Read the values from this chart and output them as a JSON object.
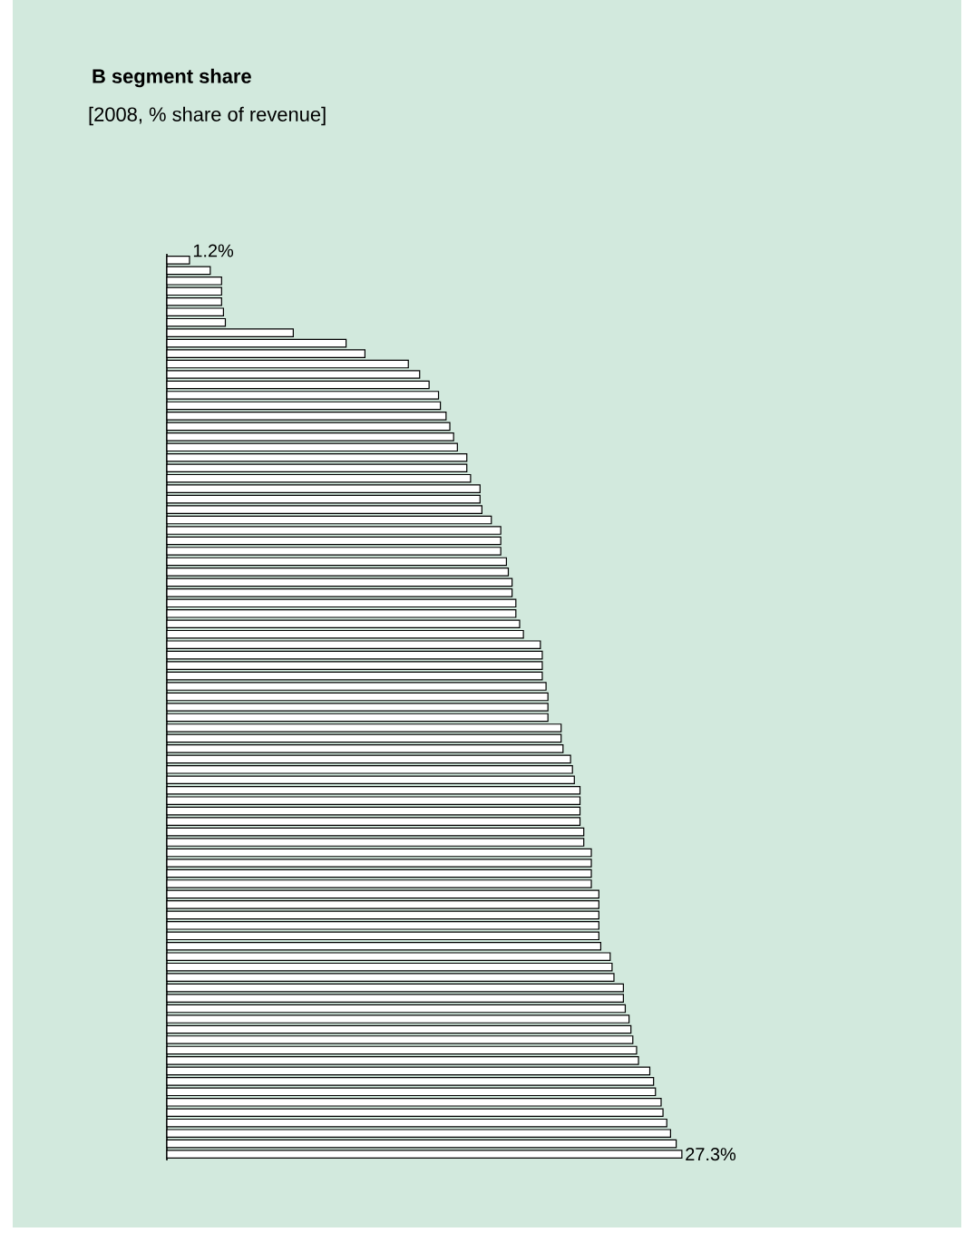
{
  "chart_data": {
    "type": "bar",
    "orientation": "horizontal",
    "title": "B segment share",
    "subtitle": "[2008, % share of revenue]",
    "categories": [
      null,
      null,
      null,
      null,
      null,
      null,
      null,
      null,
      null,
      null,
      null,
      null,
      null,
      null,
      null,
      null,
      null,
      null,
      null,
      null,
      null,
      null,
      null,
      null,
      null,
      null,
      null,
      null,
      null,
      null,
      null,
      null,
      null,
      null,
      null,
      null,
      null,
      null,
      null,
      null,
      null,
      null,
      null,
      null,
      null,
      null,
      null,
      null,
      null,
      null,
      null,
      null,
      null,
      null,
      null,
      null,
      null,
      null,
      null,
      null,
      null,
      null,
      null,
      null,
      null,
      null,
      null,
      null,
      null,
      null,
      null,
      null,
      null,
      null,
      null,
      null,
      null,
      null,
      null,
      null,
      null,
      null,
      null,
      null,
      null,
      null,
      null
    ],
    "values": [
      1.2,
      2.3,
      2.9,
      2.9,
      2.9,
      3.0,
      3.1,
      6.7,
      9.5,
      10.5,
      12.8,
      13.4,
      13.9,
      14.4,
      14.5,
      14.8,
      15.0,
      15.2,
      15.4,
      15.9,
      15.9,
      16.1,
      16.6,
      16.6,
      16.7,
      17.2,
      17.7,
      17.7,
      17.7,
      18.0,
      18.1,
      18.3,
      18.3,
      18.5,
      18.5,
      18.7,
      18.9,
      19.8,
      19.9,
      19.9,
      19.9,
      20.1,
      20.2,
      20.2,
      20.2,
      20.9,
      20.9,
      21.0,
      21.4,
      21.5,
      21.6,
      21.9,
      21.9,
      21.9,
      21.9,
      22.1,
      22.1,
      22.5,
      22.5,
      22.5,
      22.5,
      22.9,
      22.9,
      22.9,
      22.9,
      22.9,
      23.0,
      23.5,
      23.6,
      23.7,
      24.2,
      24.2,
      24.3,
      24.5,
      24.6,
      24.7,
      24.9,
      25.0,
      25.6,
      25.8,
      25.9,
      26.2,
      26.3,
      26.5,
      26.7,
      27.0,
      27.3
    ],
    "value_labels": [
      "1.2%",
      null,
      null,
      null,
      null,
      null,
      null,
      null,
      null,
      null,
      null,
      null,
      null,
      null,
      null,
      null,
      null,
      null,
      null,
      null,
      null,
      null,
      null,
      null,
      null,
      null,
      null,
      null,
      null,
      null,
      null,
      null,
      null,
      null,
      null,
      null,
      null,
      null,
      null,
      null,
      null,
      null,
      null,
      null,
      null,
      null,
      null,
      null,
      null,
      null,
      null,
      null,
      null,
      null,
      null,
      null,
      null,
      null,
      null,
      null,
      null,
      null,
      null,
      null,
      null,
      null,
      null,
      null,
      null,
      null,
      null,
      null,
      null,
      null,
      null,
      null,
      null,
      null,
      null,
      null,
      null,
      null,
      null,
      null,
      null,
      null,
      "27.3%"
    ],
    "color": "#ffffff"
  }
}
